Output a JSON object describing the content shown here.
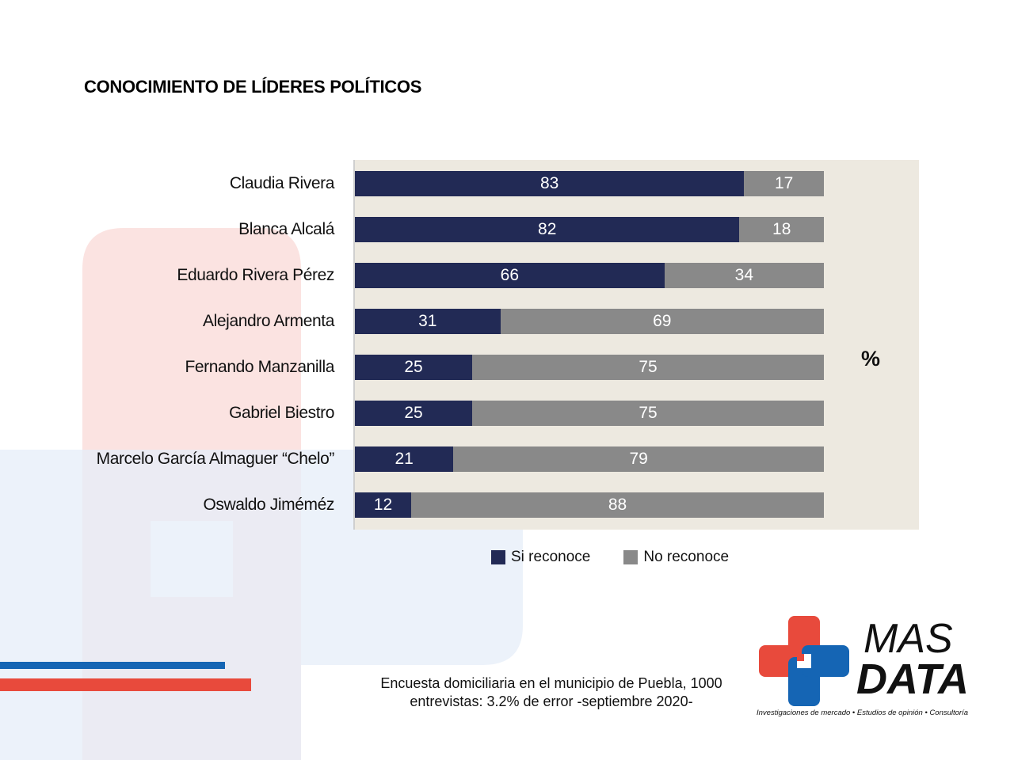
{
  "title": "CONOCIMIENTO DE LÍDERES POLÍTICOS",
  "unit_symbol": "%",
  "legend": {
    "yes_label": "Si reconoce",
    "no_label": "No reconoce"
  },
  "colors": {
    "yes": "#222a55",
    "no": "#898989",
    "brand_red": "#e84a3c",
    "brand_blue": "#1565b4"
  },
  "footnote": {
    "line1": "Encuesta domiciliaria en el municipio de Puebla, 1000",
    "line2": "entrevistas: 3.2% de error -septiembre 2020-"
  },
  "logo": {
    "word1": "MAS",
    "word2": "DATA",
    "tagline": "Investigaciones de mercado • Estudios de opinión • Consultoría"
  },
  "chart_data": {
    "type": "bar",
    "orientation": "horizontal",
    "stacked": true,
    "title": "CONOCIMIENTO DE LÍDERES POLÍTICOS",
    "categories": [
      "Claudia Rivera",
      "Blanca Alcalá",
      "Eduardo Rivera Pérez",
      "Alejandro Armenta",
      "Fernando Manzanilla",
      "Gabriel Biestro",
      "Marcelo García Almaguer “Chelo”",
      "Oswaldo Jiméméz"
    ],
    "series": [
      {
        "name": "Si reconoce",
        "values": [
          83,
          82,
          66,
          31,
          25,
          25,
          21,
          12
        ]
      },
      {
        "name": "No reconoce",
        "values": [
          17,
          18,
          34,
          69,
          75,
          75,
          79,
          88
        ]
      }
    ],
    "xlim": [
      0,
      100
    ],
    "legend_position": "bottom",
    "grid": false
  }
}
